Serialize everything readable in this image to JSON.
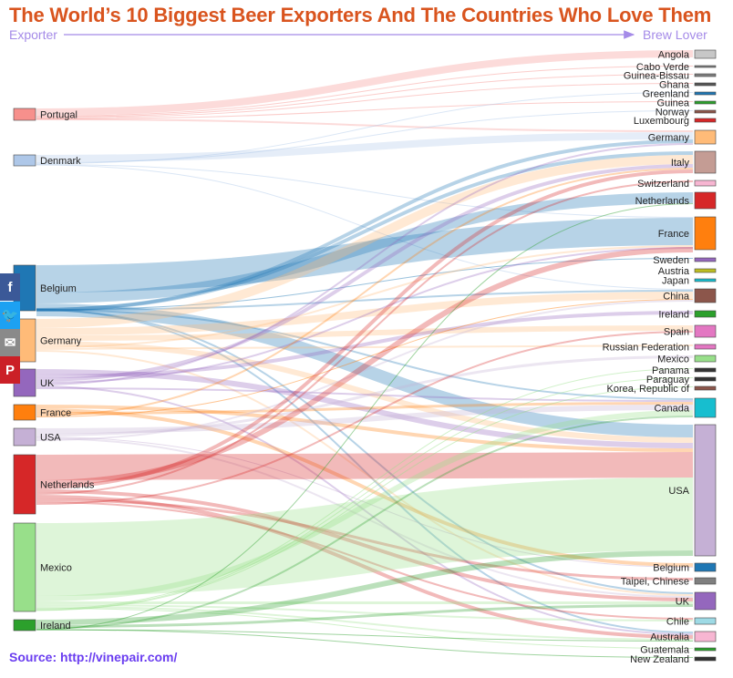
{
  "title": "The World’s 10 Biggest Beer Exporters And The Countries Who Love Them",
  "exporter_label": "Exporter",
  "lover_label": "Brew Lover",
  "source": "Source: http://vinepair.com/",
  "share": [
    {
      "name": "facebook",
      "glyph": "f",
      "color": "#3b5998"
    },
    {
      "name": "twitter",
      "glyph": "🐦",
      "color": "#1da1f2"
    },
    {
      "name": "email",
      "glyph": "✉",
      "color": "#8a8a8a"
    },
    {
      "name": "pinterest",
      "glyph": "P",
      "color": "#cb2027"
    }
  ],
  "exporters": [
    {
      "name": "Portugal",
      "color": "#f7908c"
    },
    {
      "name": "Denmark",
      "color": "#aec7e8"
    },
    {
      "name": "Belgium",
      "color": "#1f77b4"
    },
    {
      "name": "Germany",
      "color": "#ffbb78"
    },
    {
      "name": "UK",
      "color": "#9467bd"
    },
    {
      "name": "France",
      "color": "#ff7f0e"
    },
    {
      "name": "USA",
      "color": "#c5b0d5"
    },
    {
      "name": "Netherlands",
      "color": "#d62728"
    },
    {
      "name": "Mexico",
      "color": "#98df8a"
    },
    {
      "name": "Ireland",
      "color": "#2ca02c"
    }
  ],
  "lovers": [
    {
      "name": "Angola",
      "color": "#c7c7c7"
    },
    {
      "name": "Cabo Verde",
      "color": "#7f7f7f"
    },
    {
      "name": "Guinea-Bissau",
      "color": "#7f7f7f"
    },
    {
      "name": "Ghana",
      "color": "#555555"
    },
    {
      "name": "Greenland",
      "color": "#1f77b4"
    },
    {
      "name": "Guinea",
      "color": "#2ca02c"
    },
    {
      "name": "Norway",
      "color": "#8c564b"
    },
    {
      "name": "Luxembourg",
      "color": "#d62728"
    },
    {
      "name": "Germany",
      "color": "#ffbb78"
    },
    {
      "name": "Italy",
      "color": "#c49c94"
    },
    {
      "name": "Switzerland",
      "color": "#f7b6d2"
    },
    {
      "name": "Netherlands",
      "color": "#d62728"
    },
    {
      "name": "France",
      "color": "#ff7f0e"
    },
    {
      "name": "Sweden",
      "color": "#9467bd"
    },
    {
      "name": "Austria",
      "color": "#bcbd22"
    },
    {
      "name": "Japan",
      "color": "#17becf"
    },
    {
      "name": "China",
      "color": "#8c564b"
    },
    {
      "name": "Ireland",
      "color": "#2ca02c"
    },
    {
      "name": "Spain",
      "color": "#e377c2"
    },
    {
      "name": "Russian Federation",
      "color": "#e377c2"
    },
    {
      "name": "Mexico",
      "color": "#98df8a"
    },
    {
      "name": "Panama",
      "color": "#333333"
    },
    {
      "name": "Paraguay",
      "color": "#333333"
    },
    {
      "name": "Korea, Republic of",
      "color": "#8c564b"
    },
    {
      "name": "Canada",
      "color": "#17becf"
    },
    {
      "name": "USA",
      "color": "#c5b0d5"
    },
    {
      "name": "Belgium",
      "color": "#1f77b4"
    },
    {
      "name": "Taipei, Chinese",
      "color": "#7f7f7f"
    },
    {
      "name": "UK",
      "color": "#9467bd"
    },
    {
      "name": "Chile",
      "color": "#9edae5"
    },
    {
      "name": "Australia",
      "color": "#f7b6d2"
    },
    {
      "name": "Guatemala",
      "color": "#2ca02c"
    },
    {
      "name": "New Zealand",
      "color": "#333333"
    }
  ]
}
